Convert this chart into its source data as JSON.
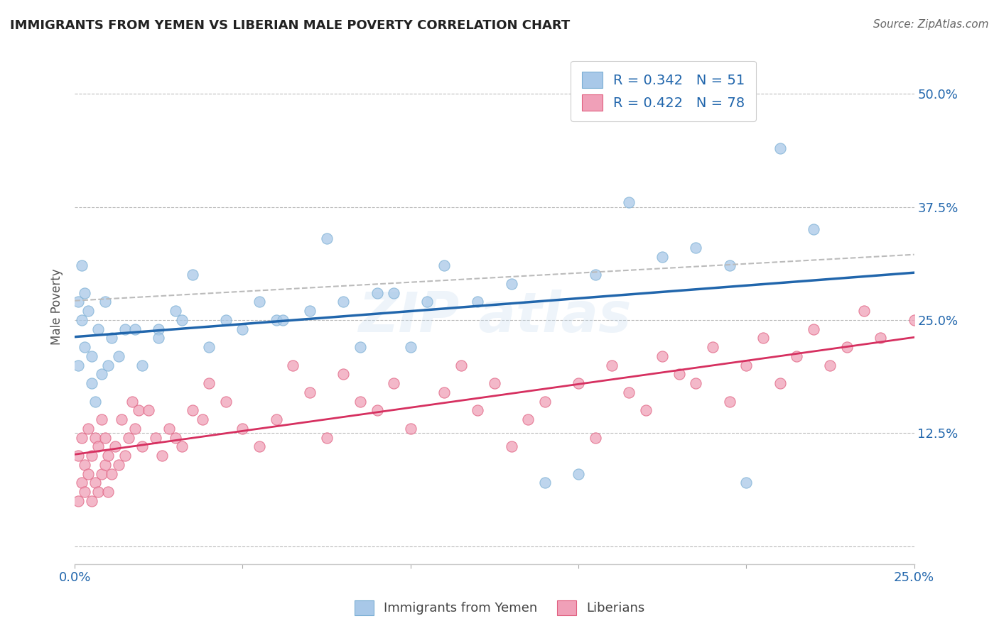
{
  "title": "IMMIGRANTS FROM YEMEN VS LIBERIAN MALE POVERTY CORRELATION CHART",
  "source": "Source: ZipAtlas.com",
  "ylabel": "Male Poverty",
  "xlim": [
    0.0,
    0.25
  ],
  "ylim": [
    -0.02,
    0.55
  ],
  "yticks": [
    0.0,
    0.125,
    0.25,
    0.375,
    0.5
  ],
  "ytick_labels": [
    "",
    "12.5%",
    "25.0%",
    "37.5%",
    "50.0%"
  ],
  "xticks": [
    0.0,
    0.05,
    0.1,
    0.15,
    0.2,
    0.25
  ],
  "xtick_labels": [
    "0.0%",
    "",
    "",
    "",
    "",
    "25.0%"
  ],
  "blue_color": "#a8c8e8",
  "pink_color": "#f0a0b8",
  "blue_edge_color": "#7bafd4",
  "pink_edge_color": "#e06080",
  "blue_line_color": "#2166ac",
  "pink_line_color": "#d63060",
  "gray_dash_color": "#bbbbbb",
  "blue_R": 0.342,
  "blue_N": 51,
  "pink_R": 0.422,
  "pink_N": 78,
  "legend_label_blue": "Immigrants from Yemen",
  "legend_label_pink": "Liberians",
  "blue_x": [
    0.001,
    0.001,
    0.002,
    0.002,
    0.003,
    0.003,
    0.004,
    0.005,
    0.005,
    0.006,
    0.007,
    0.008,
    0.009,
    0.01,
    0.011,
    0.013,
    0.015,
    0.018,
    0.02,
    0.025,
    0.03,
    0.035,
    0.04,
    0.05,
    0.055,
    0.06,
    0.07,
    0.075,
    0.08,
    0.09,
    0.1,
    0.11,
    0.12,
    0.13,
    0.14,
    0.155,
    0.165,
    0.175,
    0.185,
    0.195,
    0.2,
    0.21,
    0.22,
    0.025,
    0.032,
    0.045,
    0.062,
    0.085,
    0.095,
    0.105,
    0.15
  ],
  "blue_y": [
    0.2,
    0.27,
    0.31,
    0.25,
    0.28,
    0.22,
    0.26,
    0.18,
    0.21,
    0.16,
    0.24,
    0.19,
    0.27,
    0.2,
    0.23,
    0.21,
    0.24,
    0.24,
    0.2,
    0.24,
    0.26,
    0.3,
    0.22,
    0.24,
    0.27,
    0.25,
    0.26,
    0.34,
    0.27,
    0.28,
    0.22,
    0.31,
    0.27,
    0.29,
    0.07,
    0.3,
    0.38,
    0.32,
    0.33,
    0.31,
    0.07,
    0.44,
    0.35,
    0.23,
    0.25,
    0.25,
    0.25,
    0.22,
    0.28,
    0.27,
    0.08
  ],
  "pink_x": [
    0.001,
    0.001,
    0.002,
    0.002,
    0.003,
    0.003,
    0.004,
    0.004,
    0.005,
    0.005,
    0.006,
    0.006,
    0.007,
    0.007,
    0.008,
    0.008,
    0.009,
    0.009,
    0.01,
    0.01,
    0.011,
    0.012,
    0.013,
    0.014,
    0.015,
    0.016,
    0.017,
    0.018,
    0.019,
    0.02,
    0.022,
    0.024,
    0.026,
    0.028,
    0.03,
    0.032,
    0.035,
    0.038,
    0.04,
    0.045,
    0.05,
    0.055,
    0.06,
    0.065,
    0.07,
    0.075,
    0.08,
    0.085,
    0.09,
    0.095,
    0.1,
    0.11,
    0.115,
    0.12,
    0.125,
    0.13,
    0.135,
    0.14,
    0.15,
    0.155,
    0.16,
    0.165,
    0.17,
    0.175,
    0.18,
    0.185,
    0.19,
    0.195,
    0.2,
    0.205,
    0.21,
    0.215,
    0.22,
    0.225,
    0.23,
    0.235,
    0.24,
    0.25
  ],
  "pink_y": [
    0.05,
    0.1,
    0.07,
    0.12,
    0.06,
    0.09,
    0.08,
    0.13,
    0.05,
    0.1,
    0.07,
    0.12,
    0.06,
    0.11,
    0.08,
    0.14,
    0.09,
    0.12,
    0.1,
    0.06,
    0.08,
    0.11,
    0.09,
    0.14,
    0.1,
    0.12,
    0.16,
    0.13,
    0.15,
    0.11,
    0.15,
    0.12,
    0.1,
    0.13,
    0.12,
    0.11,
    0.15,
    0.14,
    0.18,
    0.16,
    0.13,
    0.11,
    0.14,
    0.2,
    0.17,
    0.12,
    0.19,
    0.16,
    0.15,
    0.18,
    0.13,
    0.17,
    0.2,
    0.15,
    0.18,
    0.11,
    0.14,
    0.16,
    0.18,
    0.12,
    0.2,
    0.17,
    0.15,
    0.21,
    0.19,
    0.18,
    0.22,
    0.16,
    0.2,
    0.23,
    0.18,
    0.21,
    0.24,
    0.2,
    0.22,
    0.26,
    0.23,
    0.25
  ]
}
